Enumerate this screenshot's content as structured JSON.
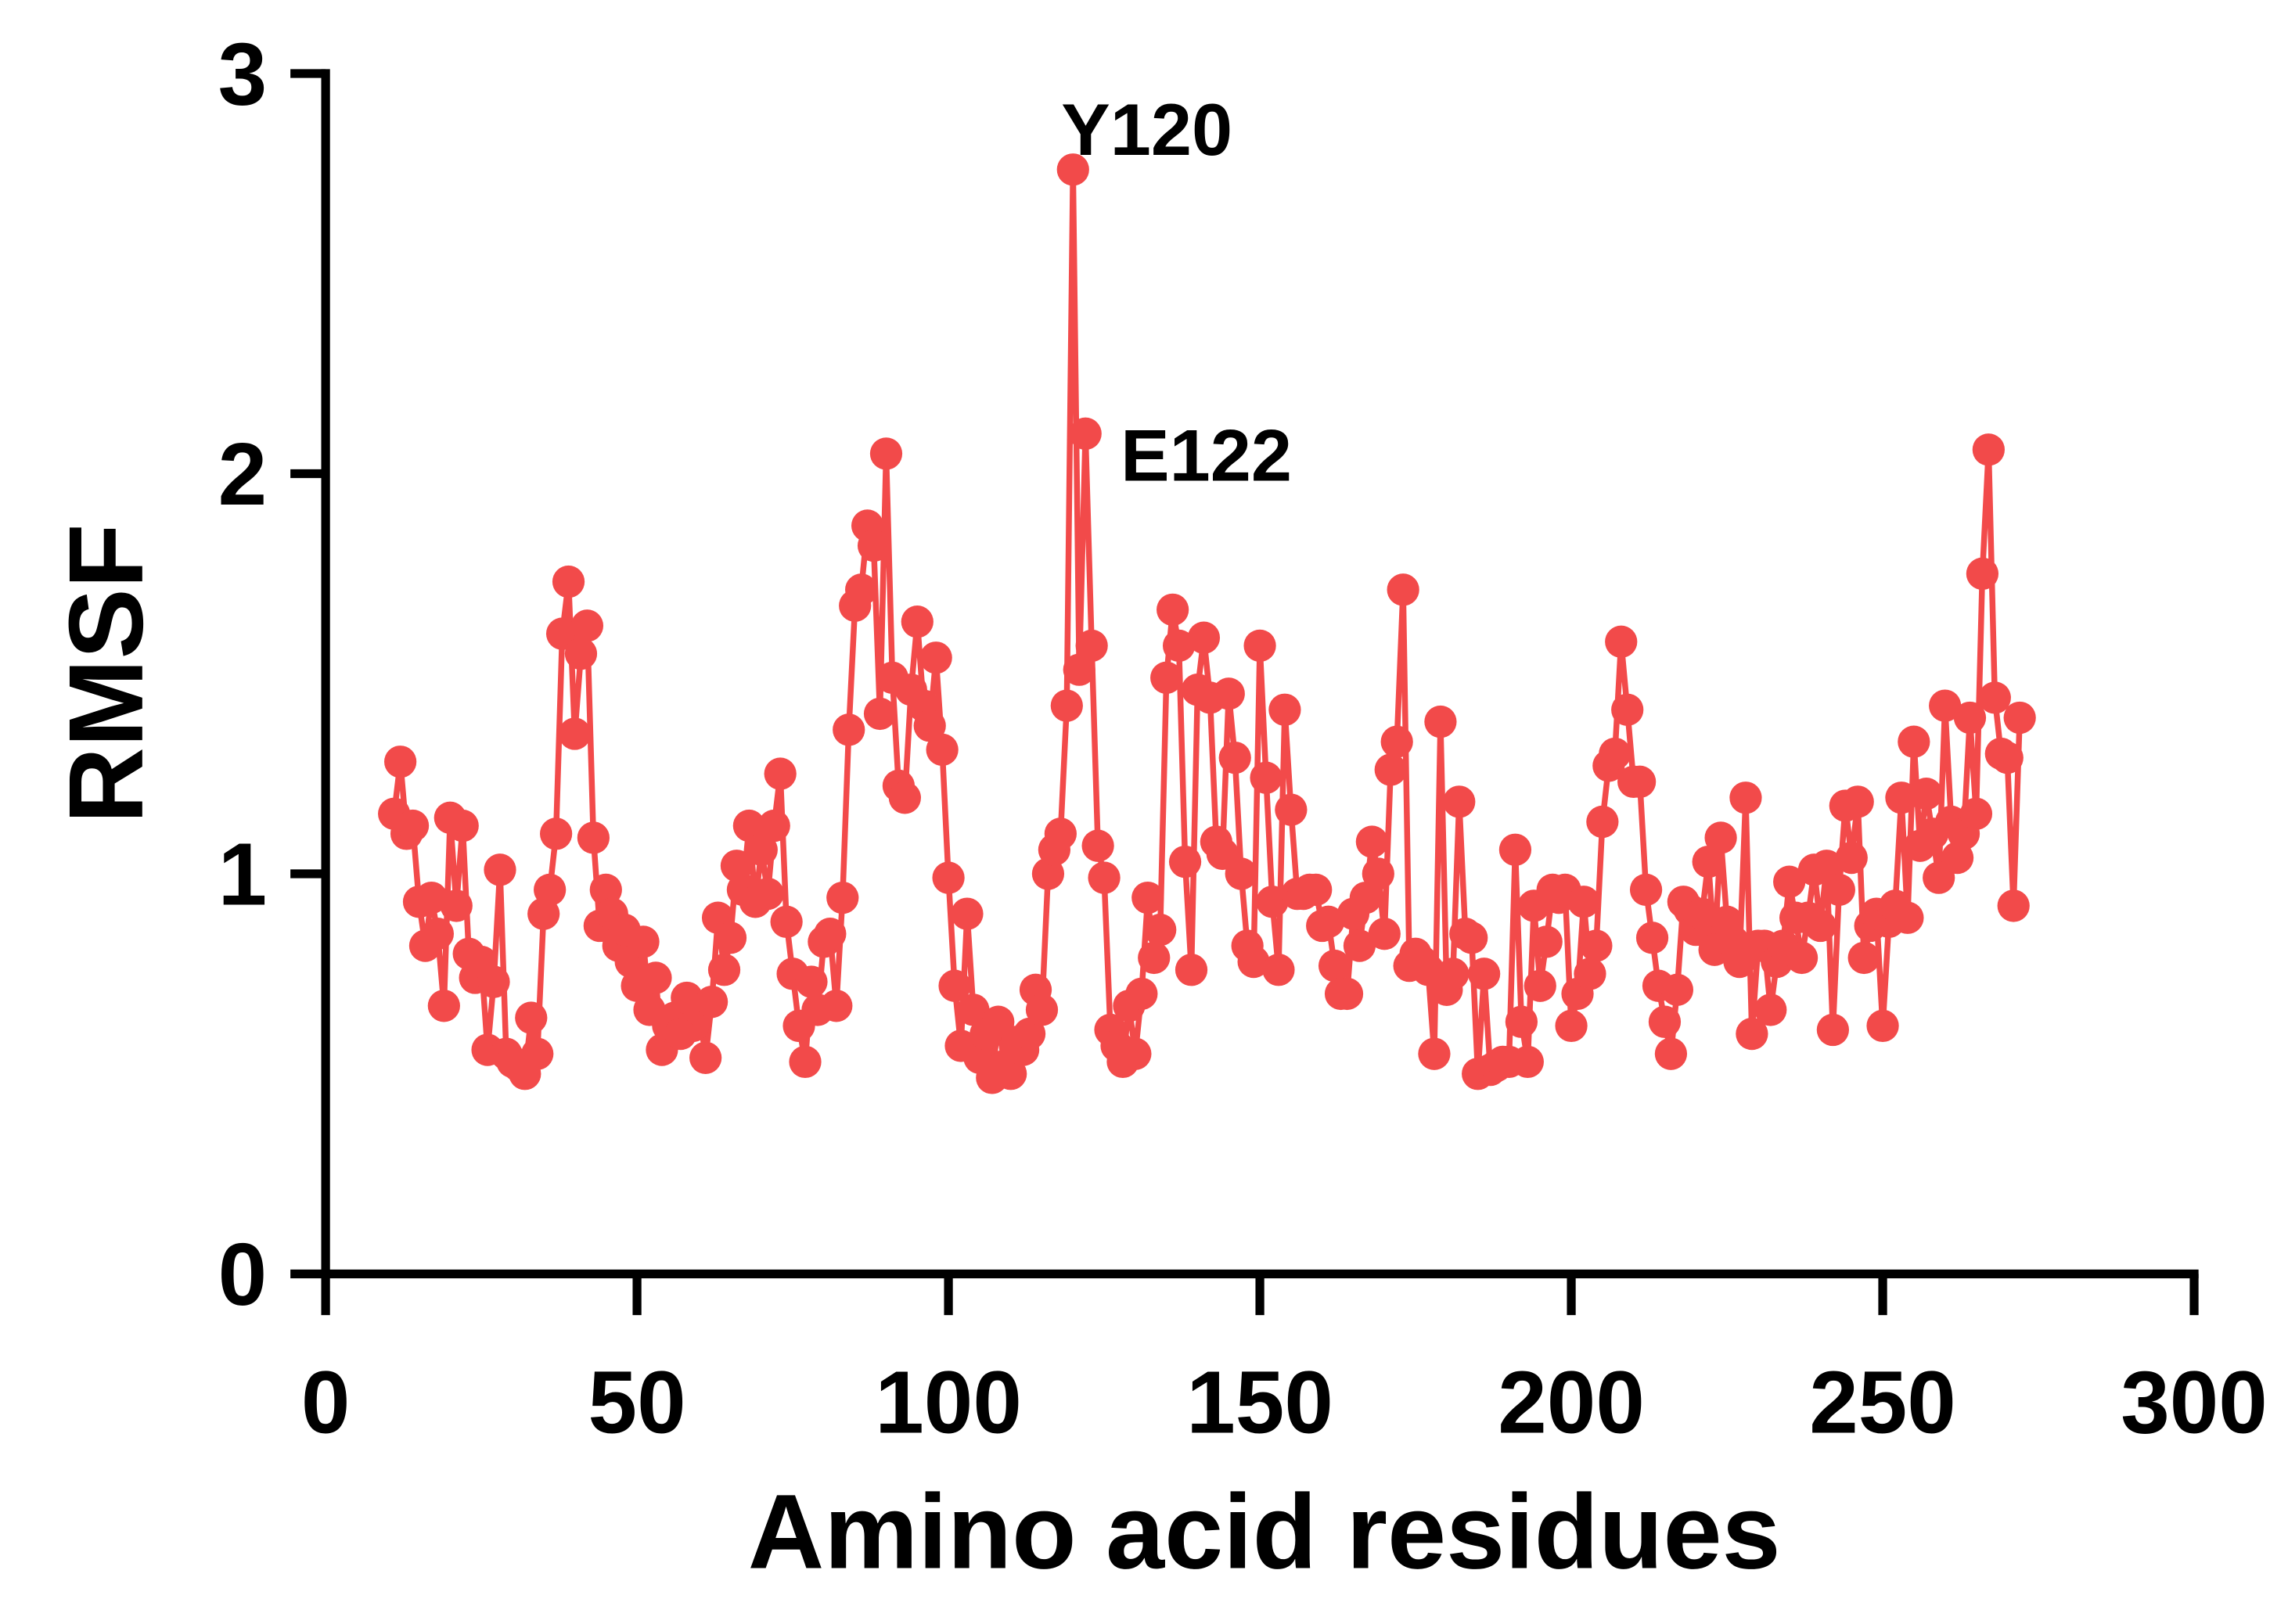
{
  "chart_data": {
    "type": "line",
    "xlabel": "Amino acid residues",
    "ylabel": "RMSF",
    "xlim": [
      0,
      300
    ],
    "xticks": [
      0,
      50,
      100,
      150,
      200,
      250,
      300
    ],
    "ylim": [
      0,
      3
    ],
    "yticks": [
      0,
      1,
      2,
      3
    ],
    "annotations": [
      {
        "text": "Y120"
      },
      {
        "text": "E122"
      }
    ],
    "x": [
      11,
      12,
      13,
      14,
      15,
      16,
      17,
      18,
      19,
      20,
      21,
      22,
      23,
      24,
      25,
      26,
      27,
      28,
      29,
      30,
      31,
      32,
      33,
      34,
      35,
      36,
      37,
      38,
      39,
      40,
      41,
      42,
      43,
      44,
      45,
      46,
      47,
      48,
      49,
      50,
      51,
      52,
      53,
      54,
      55,
      56,
      57,
      58,
      59,
      60,
      61,
      62,
      63,
      64,
      65,
      66,
      67,
      68,
      69,
      70,
      71,
      72,
      73,
      74,
      75,
      76,
      77,
      78,
      79,
      80,
      81,
      82,
      83,
      84,
      85,
      86,
      87,
      88,
      89,
      90,
      91,
      92,
      93,
      94,
      95,
      96,
      97,
      98,
      99,
      100,
      101,
      102,
      103,
      104,
      105,
      106,
      107,
      108,
      109,
      110,
      111,
      112,
      113,
      114,
      115,
      116,
      117,
      118,
      119,
      120,
      121,
      122,
      123,
      124,
      125,
      126,
      127,
      128,
      129,
      130,
      131,
      132,
      133,
      134,
      135,
      136,
      137,
      138,
      139,
      140,
      141,
      142,
      143,
      144,
      145,
      146,
      147,
      148,
      149,
      150,
      151,
      152,
      153,
      154,
      155,
      156,
      157,
      158,
      159,
      160,
      161,
      162,
      163,
      164,
      165,
      166,
      167,
      168,
      169,
      170,
      171,
      172,
      173,
      174,
      175,
      176,
      177,
      178,
      179,
      180,
      181,
      182,
      183,
      184,
      185,
      186,
      187,
      188,
      189,
      190,
      191,
      192,
      193,
      194,
      195,
      196,
      197,
      198,
      199,
      200,
      201,
      202,
      203,
      204,
      205,
      206,
      207,
      208,
      209,
      210,
      211,
      212,
      213,
      214,
      215,
      216,
      217,
      218,
      219,
      220,
      221,
      222,
      223,
      224,
      225,
      226,
      227,
      228,
      229,
      230,
      231,
      232,
      233,
      234,
      235,
      236,
      237,
      238,
      239,
      240,
      241,
      242,
      243,
      244,
      245,
      246,
      247,
      248,
      249,
      250,
      251,
      252,
      253,
      254,
      255,
      256,
      257,
      258,
      259,
      260,
      261,
      262,
      263,
      264,
      265,
      266,
      267,
      268,
      269,
      270,
      271,
      272
    ],
    "series": [
      {
        "color": "#f24a4a",
        "values": [
          1.15,
          1.28,
          1.1,
          1.12,
          0.93,
          0.82,
          0.94,
          0.85,
          0.67,
          1.14,
          0.92,
          1.12,
          0.8,
          0.74,
          0.78,
          0.56,
          0.73,
          1.01,
          0.55,
          0.53,
          0.52,
          0.5,
          0.64,
          0.55,
          0.9,
          0.96,
          1.1,
          1.6,
          1.73,
          1.35,
          1.55,
          1.62,
          1.09,
          0.87,
          0.96,
          0.9,
          0.82,
          0.86,
          0.78,
          0.72,
          0.83,
          0.66,
          0.74,
          0.56,
          0.62,
          0.64,
          0.6,
          0.69,
          0.62,
          0.66,
          0.54,
          0.68,
          0.89,
          0.76,
          0.84,
          1.02,
          0.96,
          1.12,
          0.93,
          1.06,
          0.95,
          1.12,
          1.25,
          0.88,
          0.75,
          0.62,
          0.53,
          0.73,
          0.66,
          0.83,
          0.85,
          0.67,
          0.94,
          1.36,
          1.67,
          1.71,
          1.87,
          1.82,
          1.4,
          2.05,
          1.49,
          1.22,
          1.19,
          1.46,
          1.63,
          1.42,
          1.37,
          1.54,
          1.31,
          0.99,
          0.72,
          0.57,
          0.9,
          0.66,
          0.54,
          0.6,
          0.49,
          0.63,
          0.52,
          0.5,
          0.58,
          0.56,
          0.6,
          0.71,
          0.66,
          1.0,
          1.06,
          1.1,
          1.42,
          2.76,
          1.51,
          2.1,
          1.57,
          1.07,
          0.99,
          0.61,
          0.57,
          0.53,
          0.67,
          0.55,
          0.7,
          0.94,
          0.79,
          0.86,
          1.49,
          1.66,
          1.57,
          1.03,
          0.76,
          1.46,
          1.59,
          1.44,
          1.08,
          1.05,
          1.45,
          1.29,
          1.0,
          0.82,
          0.78,
          1.57,
          1.24,
          0.93,
          0.76,
          1.41,
          1.16,
          0.95,
          0.95,
          0.96,
          0.96,
          0.87,
          0.88,
          0.77,
          0.7,
          0.7,
          0.9,
          0.82,
          0.94,
          1.08,
          1.0,
          0.85,
          1.26,
          1.33,
          1.71,
          0.77,
          0.8,
          0.78,
          0.76,
          0.55,
          1.38,
          0.71,
          0.75,
          1.18,
          0.85,
          0.84,
          0.5,
          0.75,
          0.51,
          0.52,
          0.53,
          0.53,
          1.06,
          0.63,
          0.53,
          0.92,
          0.72,
          0.83,
          0.96,
          0.94,
          0.96,
          0.62,
          0.7,
          0.93,
          0.75,
          0.82,
          1.13,
          1.27,
          1.3,
          1.58,
          1.41,
          1.23,
          1.23,
          0.96,
          0.84,
          0.72,
          0.63,
          0.55,
          0.71,
          0.93,
          0.91,
          0.86,
          0.9,
          1.03,
          0.81,
          1.09,
          0.88,
          0.83,
          0.78,
          1.19,
          0.6,
          0.82,
          0.82,
          0.66,
          0.78,
          0.82,
          0.98,
          0.89,
          0.79,
          0.89,
          1.01,
          0.87,
          1.02,
          0.61,
          0.96,
          1.17,
          1.04,
          1.18,
          0.79,
          0.87,
          0.9,
          0.62,
          0.88,
          0.92,
          1.19,
          0.89,
          1.33,
          1.07,
          1.2,
          1.1,
          0.99,
          1.42,
          1.13,
          1.04,
          1.1,
          1.39,
          1.15,
          1.75,
          2.06,
          1.44,
          1.3,
          1.29,
          0.92,
          1.39
        ]
      }
    ]
  }
}
